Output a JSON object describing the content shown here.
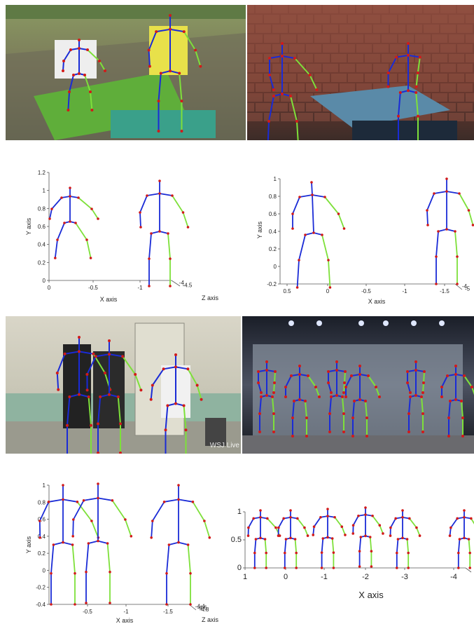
{
  "colors": {
    "limb_left": "#1a2bd6",
    "limb_right": "#7ee03a",
    "joint": "#d21a1a",
    "axis": "#555555"
  },
  "photos": [
    {
      "scene": "rice-field-workers",
      "people": 2,
      "watermark": ""
    },
    {
      "scene": "foosball-game",
      "people": 2,
      "watermark": ""
    },
    {
      "scene": "office-gym-group",
      "people": 3,
      "watermark": "WSJ Live"
    },
    {
      "scene": "stage-performers",
      "people": 7,
      "watermark": ""
    }
  ],
  "plots": [
    {
      "xlabel": "X axis",
      "ylabel": "Y axis",
      "zlabel": "Z axis",
      "xticks": [
        "0",
        "-0.5",
        "-1"
      ],
      "yticks": [
        "0",
        "0.2",
        "0.4",
        "0.6",
        "0.8",
        "1",
        "1.2"
      ],
      "zticks": [
        "-4",
        "-4.5"
      ],
      "people": 2
    },
    {
      "xlabel": "X axis",
      "ylabel": "Y axis",
      "zlabel": "",
      "xticks": [
        "0.5",
        "0",
        "-0.5",
        "-1",
        "-1.5"
      ],
      "yticks": [
        "-0.2",
        "0",
        "0.2",
        "0.4",
        "0.6",
        "0.8",
        "1"
      ],
      "zticks": [
        "-4",
        "-5"
      ],
      "people": 2
    },
    {
      "xlabel": "X axis",
      "ylabel": "Y axis",
      "zlabel": "Z axis",
      "xticks": [
        "-0.5",
        "-1",
        "-1.5"
      ],
      "yticks": [
        "-0.4",
        "-0.2",
        "0",
        "0.2",
        "0.4",
        "0.6",
        "0.8",
        "1"
      ],
      "zticks": [
        "-4.4",
        "-4.6",
        "-4.8"
      ],
      "people": 3
    },
    {
      "xlabel": "X axis",
      "ylabel": "",
      "zlabel": "",
      "xticks": [
        "1",
        "0",
        "-1",
        "-2",
        "-3",
        "-4"
      ],
      "yticks": [
        "0",
        "0.5",
        "1"
      ],
      "zticks": [],
      "people": 6
    }
  ]
}
